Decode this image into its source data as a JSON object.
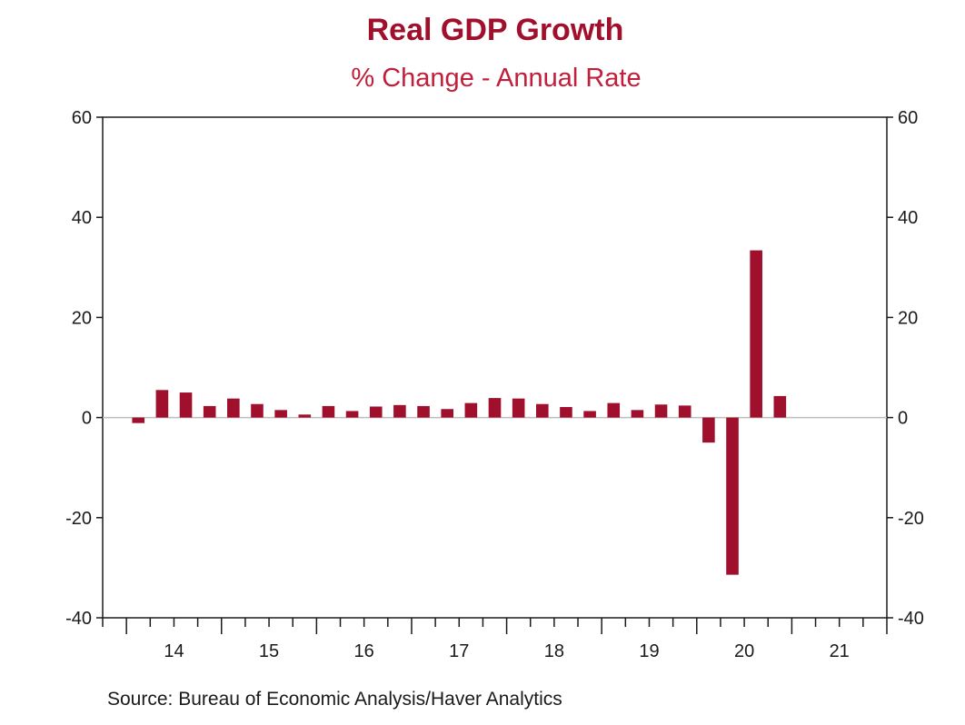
{
  "chart_data": {
    "type": "bar",
    "title": "Real GDP Growth",
    "subtitle": "% Change - Annual Rate",
    "xlabel": "",
    "ylabel": "",
    "ylim": [
      -40,
      60
    ],
    "yticks": [
      -40,
      -20,
      0,
      20,
      40,
      60
    ],
    "y_axis_sides": [
      "left",
      "right"
    ],
    "grid": false,
    "year_labels": [
      "14",
      "15",
      "16",
      "17",
      "18",
      "19",
      "20",
      "21"
    ],
    "x_range": [
      "2013-Q4",
      "2021-Q4"
    ],
    "categories": [
      "2014-Q1",
      "2014-Q2",
      "2014-Q3",
      "2014-Q4",
      "2015-Q1",
      "2015-Q2",
      "2015-Q3",
      "2015-Q4",
      "2016-Q1",
      "2016-Q2",
      "2016-Q3",
      "2016-Q4",
      "2017-Q1",
      "2017-Q2",
      "2017-Q3",
      "2017-Q4",
      "2018-Q1",
      "2018-Q2",
      "2018-Q3",
      "2018-Q4",
      "2019-Q1",
      "2019-Q2",
      "2019-Q3",
      "2019-Q4",
      "2020-Q1",
      "2020-Q2",
      "2020-Q3",
      "2020-Q4"
    ],
    "values": [
      -1.1,
      5.5,
      5.0,
      2.3,
      3.8,
      2.7,
      1.5,
      0.6,
      2.3,
      1.3,
      2.2,
      2.5,
      2.3,
      1.7,
      2.9,
      3.9,
      3.8,
      2.7,
      2.1,
      1.3,
      2.9,
      1.5,
      2.6,
      2.4,
      -5.0,
      -31.4,
      33.4,
      4.3
    ],
    "series_color": "#a00f2b",
    "source": "Source:  Bureau of Economic Analysis/Haver Analytics"
  }
}
